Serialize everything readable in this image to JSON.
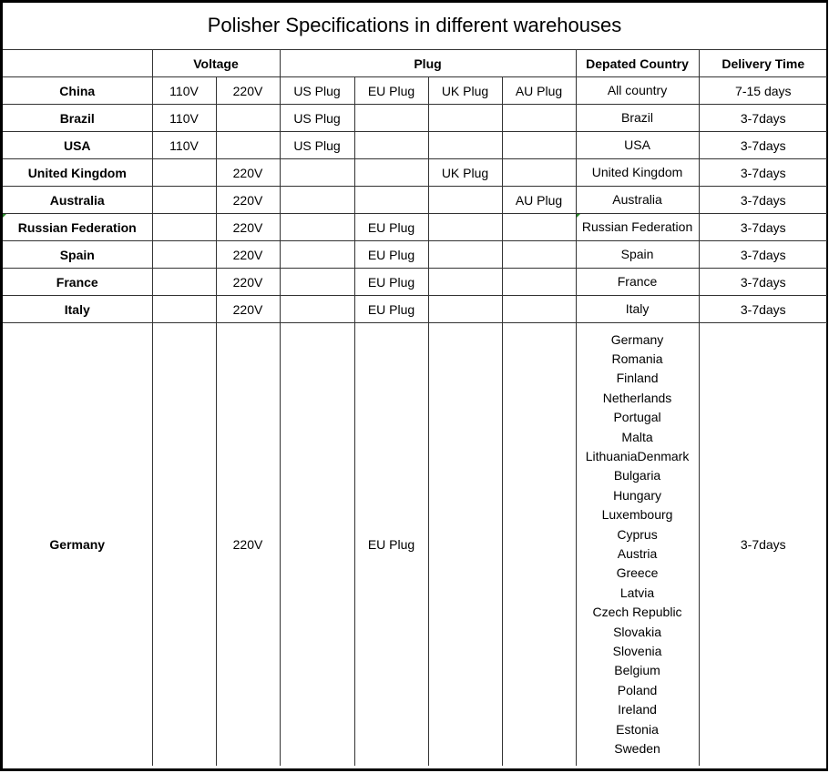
{
  "title": "Polisher Specifications in different warehouses",
  "headers": {
    "warehouse": "",
    "voltage": "Voltage",
    "plug": "Plug",
    "departed_country": "Depated Country",
    "delivery_time": "Delivery Time"
  },
  "rows": [
    {
      "warehouse": "China",
      "v110": "110V",
      "v220": "220V",
      "us": "US Plug",
      "eu": "EU Plug",
      "uk": "UK Plug",
      "au": "AU Plug",
      "countries": [
        "All country"
      ],
      "delivery": "7-15 days"
    },
    {
      "warehouse": "Brazil",
      "v110": "110V",
      "v220": "",
      "us": "US Plug",
      "eu": "",
      "uk": "",
      "au": "",
      "countries": [
        "Brazil"
      ],
      "delivery": "3-7days"
    },
    {
      "warehouse": "USA",
      "v110": "110V",
      "v220": "",
      "us": "US Plug",
      "eu": "",
      "uk": "",
      "au": "",
      "countries": [
        "USA"
      ],
      "delivery": "3-7days"
    },
    {
      "warehouse": "United Kingdom",
      "v110": "",
      "v220": "220V",
      "us": "",
      "eu": "",
      "uk": "UK Plug",
      "au": "",
      "countries": [
        "United Kingdom"
      ],
      "delivery": "3-7days"
    },
    {
      "warehouse": "Australia",
      "v110": "",
      "v220": "220V",
      "us": "",
      "eu": "",
      "uk": "",
      "au": "AU Plug",
      "countries": [
        "Australia"
      ],
      "delivery": "3-7days"
    },
    {
      "warehouse": "Russian Federation",
      "v110": "",
      "v220": "220V",
      "us": "",
      "eu": "EU Plug",
      "uk": "",
      "au": "",
      "countries": [
        "Russian Federation"
      ],
      "delivery": "3-7days"
    },
    {
      "warehouse": "Spain",
      "v110": "",
      "v220": "220V",
      "us": "",
      "eu": "EU Plug",
      "uk": "",
      "au": "",
      "countries": [
        "Spain"
      ],
      "delivery": "3-7days"
    },
    {
      "warehouse": "France",
      "v110": "",
      "v220": "220V",
      "us": "",
      "eu": "EU Plug",
      "uk": "",
      "au": "",
      "countries": [
        "France"
      ],
      "delivery": "3-7days"
    },
    {
      "warehouse": "Italy",
      "v110": "",
      "v220": "220V",
      "us": "",
      "eu": "EU Plug",
      "uk": "",
      "au": "",
      "countries": [
        "Italy"
      ],
      "delivery": "3-7days"
    },
    {
      "warehouse": "Germany",
      "v110": "",
      "v220": "220V",
      "us": "",
      "eu": "EU Plug",
      "uk": "",
      "au": "",
      "countries": [
        "Germany",
        "Romania",
        "Finland",
        "Netherlands",
        "Portugal",
        "Malta",
        "LithuaniaDenmark",
        "Bulgaria",
        "Hungary",
        "Luxembourg",
        "Cyprus",
        "Austria",
        "Greece",
        "Latvia",
        "Czech Republic",
        "Slovakia",
        "Slovenia",
        "Belgium",
        "Poland",
        "Ireland",
        "Estonia",
        "Sweden"
      ],
      "delivery": "3-7days"
    }
  ]
}
